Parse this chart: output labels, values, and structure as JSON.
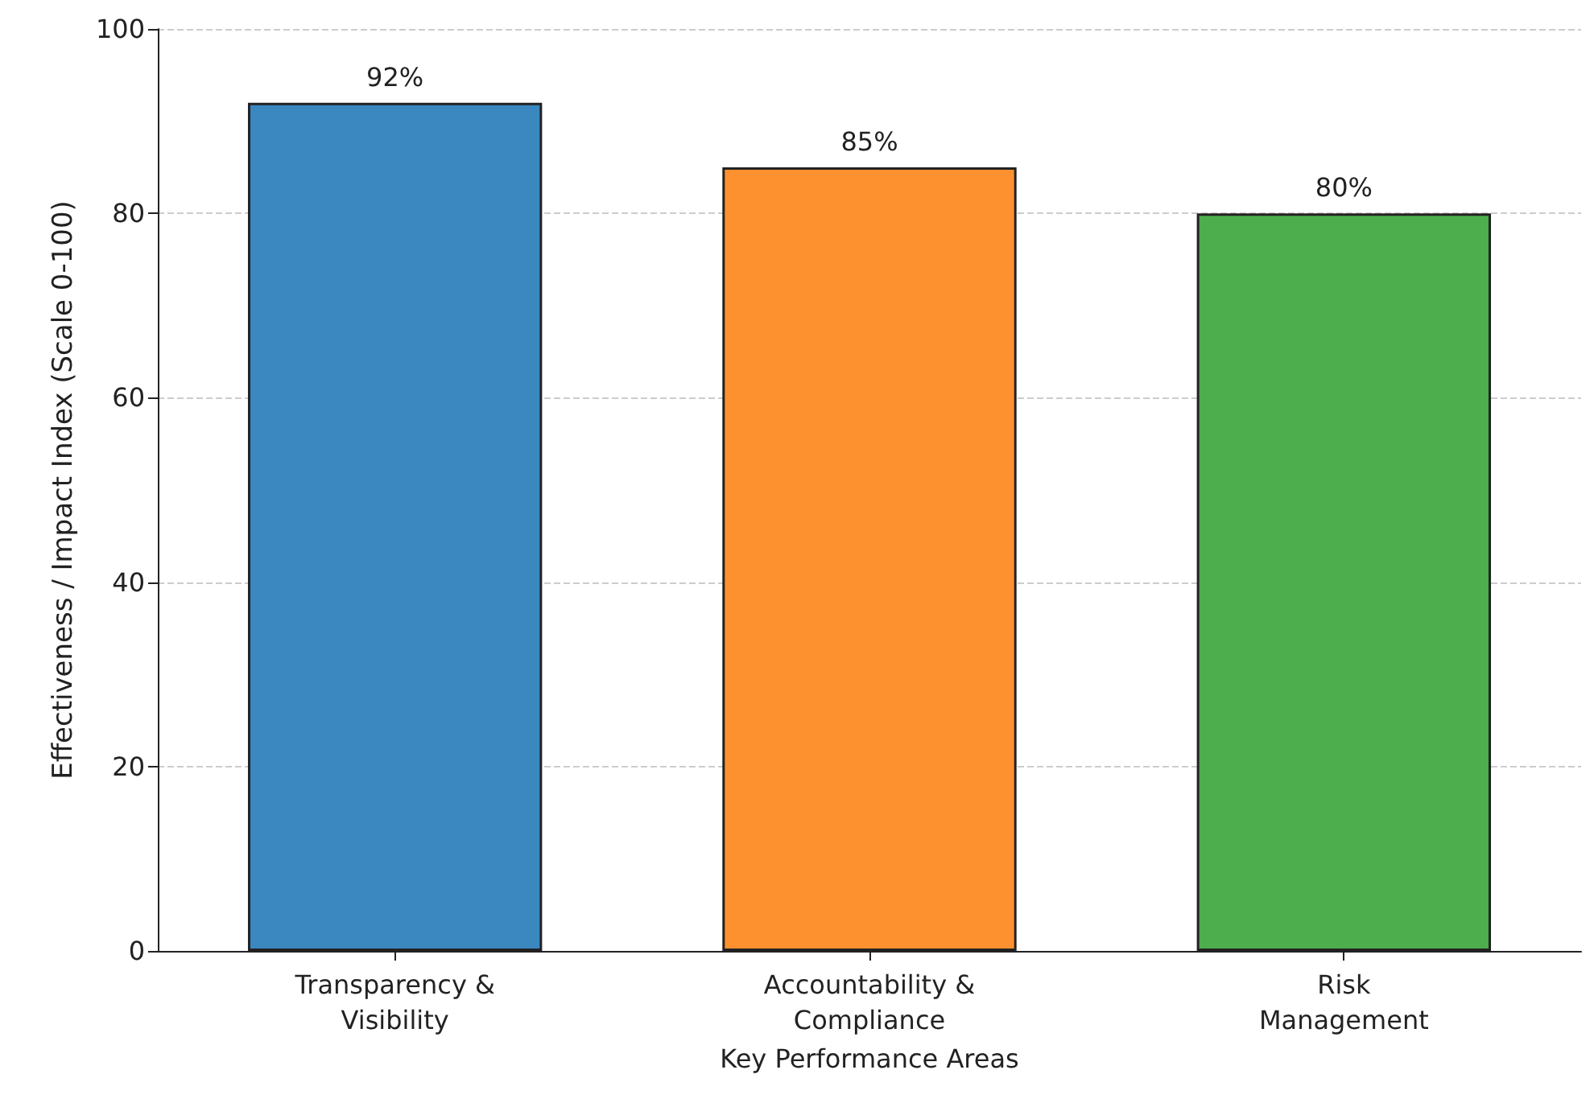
{
  "chart_data": {
    "type": "bar",
    "categories": [
      "Transparency &\nVisibility",
      "Accountability &\nCompliance",
      "Risk\nManagement"
    ],
    "values": [
      92,
      85,
      80
    ],
    "colors": [
      "#3b87c0",
      "#fe912f",
      "#4cae4c"
    ],
    "value_labels": [
      "92%",
      "85%",
      "80%"
    ],
    "xlabel": "Key Performance Areas",
    "ylabel": "Effectiveness / Impact Index (Scale 0-100)",
    "ylim": [
      0,
      100
    ],
    "yticks": [
      0,
      20,
      40,
      60,
      80,
      100
    ],
    "grid": "y"
  }
}
